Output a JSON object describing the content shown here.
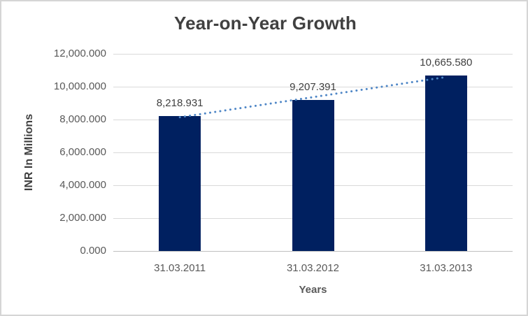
{
  "chart_data": {
    "type": "bar",
    "title": "Year-on-Year Growth",
    "xlabel": "Years",
    "ylabel": "INR In Millions",
    "categories": [
      "31.03.2011",
      "31.03.2012",
      "31.03.2013"
    ],
    "values": [
      8218.931,
      9207.391,
      10665.58
    ],
    "data_labels": [
      "8,218.931",
      "9,207.391",
      "10,665.580"
    ],
    "ylim": [
      0,
      12000
    ],
    "y_ticks": [
      {
        "value": 0,
        "label": "0.000"
      },
      {
        "value": 2000,
        "label": "2,000.000"
      },
      {
        "value": 4000,
        "label": "4,000.000"
      },
      {
        "value": 6000,
        "label": "6,000.000"
      },
      {
        "value": 8000,
        "label": "8,000.000"
      },
      {
        "value": 10000,
        "label": "10,000.000"
      },
      {
        "value": 12000,
        "label": "12,000.000"
      }
    ],
    "grid": true,
    "legend": "none",
    "bar_color": "#002060",
    "trendline": {
      "type": "linear",
      "style": "dotted",
      "color": "#4e86c6"
    }
  },
  "colors": {
    "background": "#ffffff",
    "border": "#d5d5d5",
    "title_text": "#404040",
    "tick_text": "#595959",
    "data_label_text": "#404040",
    "gridline": "#d9d9d9",
    "axis_line": "#bfbfbf"
  }
}
